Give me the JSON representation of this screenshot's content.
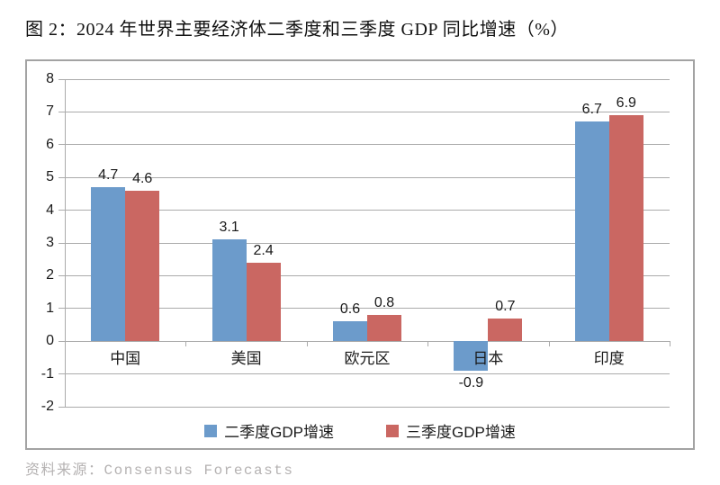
{
  "title": "图 2：2024 年世界主要经济体二季度和三季度 GDP 同比增速（%）",
  "source": "资料来源：Consensus Forecasts",
  "colors": {
    "series_q2": "#6c9bcb",
    "series_q3": "#ca6762",
    "gridline": "#ababab",
    "frame_border": "#a3a3a3",
    "source_text": "#b5b2b2"
  },
  "chart_data": {
    "type": "bar",
    "categories": [
      "中国",
      "美国",
      "欧元区",
      "日本",
      "印度"
    ],
    "series": [
      {
        "name": "二季度GDP增速",
        "color": "#6c9bcb",
        "values": [
          4.7,
          3.1,
          0.6,
          -0.9,
          6.7
        ]
      },
      {
        "name": "三季度GDP增速",
        "color": "#ca6762",
        "values": [
          4.6,
          2.4,
          0.8,
          0.7,
          6.9
        ]
      }
    ],
    "value_labels": [
      [
        "4.7",
        "3.1",
        "0.6",
        "-0.9",
        "6.7"
      ],
      [
        "4.6",
        "2.4",
        "0.8",
        "0.7",
        "6.9"
      ]
    ],
    "ylim": [
      -2,
      8
    ],
    "ytick_step": 1,
    "yticks": [
      "8",
      "7",
      "6",
      "5",
      "4",
      "3",
      "2",
      "1",
      "0",
      "-1",
      "-2"
    ],
    "grid": true,
    "legend_position": "bottom"
  }
}
